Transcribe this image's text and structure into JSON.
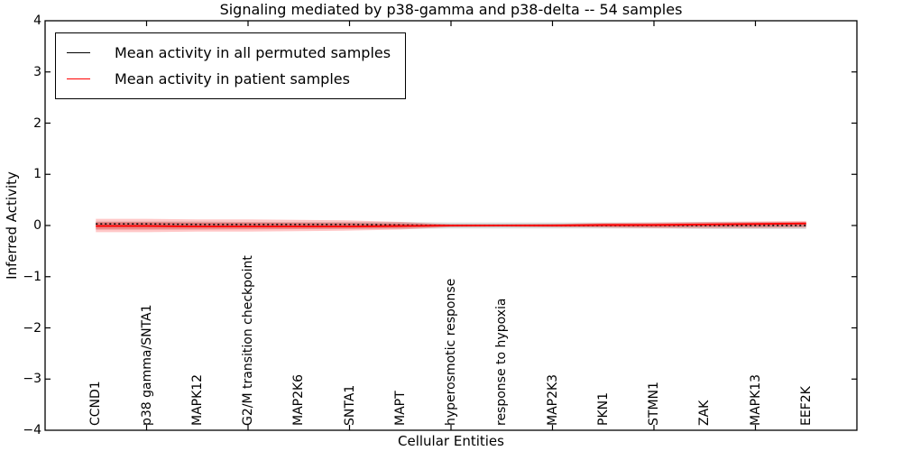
{
  "chart_data": {
    "type": "line",
    "title": "Signaling mediated by p38-gamma and p38-delta -- 54 samples",
    "xlabel": "Cellular Entities",
    "ylabel": "Inferred Activity",
    "xlim": [
      0,
      16
    ],
    "ylim": [
      -4,
      4
    ],
    "ytick_step": 1,
    "xtick_step": 2,
    "grid": false,
    "frame_color": "#000000",
    "categories": [
      "CCND1",
      "p38 gamma/SNTA1",
      "MAPK12",
      "G2/M transition checkpoint",
      "MAP2K6",
      "SNTA1",
      "MAPT",
      "hyperosmotic response",
      "response to hypoxia",
      "MAP2K3",
      "PKN1",
      "STMN1",
      "ZAK",
      "MAPK13",
      "EEF2K"
    ],
    "series": [
      {
        "name": "Mean activity in all permuted samples",
        "color": "#000000",
        "line_style": "dashed",
        "band_color": "rgba(80,80,80,0.18)",
        "values": [
          0.03,
          0.03,
          0.02,
          0.02,
          0.02,
          0.02,
          0.01,
          0.0,
          0.0,
          0.0,
          0.0,
          0.0,
          0.0,
          0.0,
          0.0
        ],
        "band_upper": [
          0.08,
          0.08,
          0.08,
          0.07,
          0.07,
          0.07,
          0.07,
          0.06,
          0.06,
          0.06,
          0.06,
          0.06,
          0.07,
          0.07,
          0.07
        ],
        "band_lower": [
          -0.08,
          -0.08,
          -0.08,
          -0.07,
          -0.07,
          -0.07,
          -0.07,
          -0.06,
          -0.06,
          -0.06,
          -0.06,
          -0.06,
          -0.07,
          -0.07,
          -0.07
        ]
      },
      {
        "name": "Mean activity in patient samples",
        "color": "#ff0000",
        "line_style": "solid",
        "band_color": "rgba(255,0,0,0.22)",
        "values": [
          -0.01,
          -0.01,
          -0.02,
          -0.02,
          -0.02,
          -0.02,
          -0.01,
          0.0,
          0.0,
          0.0,
          0.01,
          0.01,
          0.02,
          0.03,
          0.04
        ],
        "band_upper": [
          0.13,
          0.13,
          0.12,
          0.12,
          0.11,
          0.1,
          0.07,
          0.02,
          0.02,
          0.03,
          0.05,
          0.06,
          0.07,
          0.08,
          0.09
        ],
        "band_lower": [
          -0.13,
          -0.13,
          -0.12,
          -0.12,
          -0.11,
          -0.1,
          -0.08,
          -0.03,
          -0.02,
          -0.03,
          -0.04,
          -0.05,
          -0.05,
          -0.05,
          -0.04
        ]
      }
    ],
    "legend": {
      "position": "upper left",
      "entries": [
        {
          "label": "Mean activity in all permuted samples",
          "color": "#000000"
        },
        {
          "label": "Mean activity in patient samples",
          "color": "#ff0000"
        }
      ]
    }
  }
}
